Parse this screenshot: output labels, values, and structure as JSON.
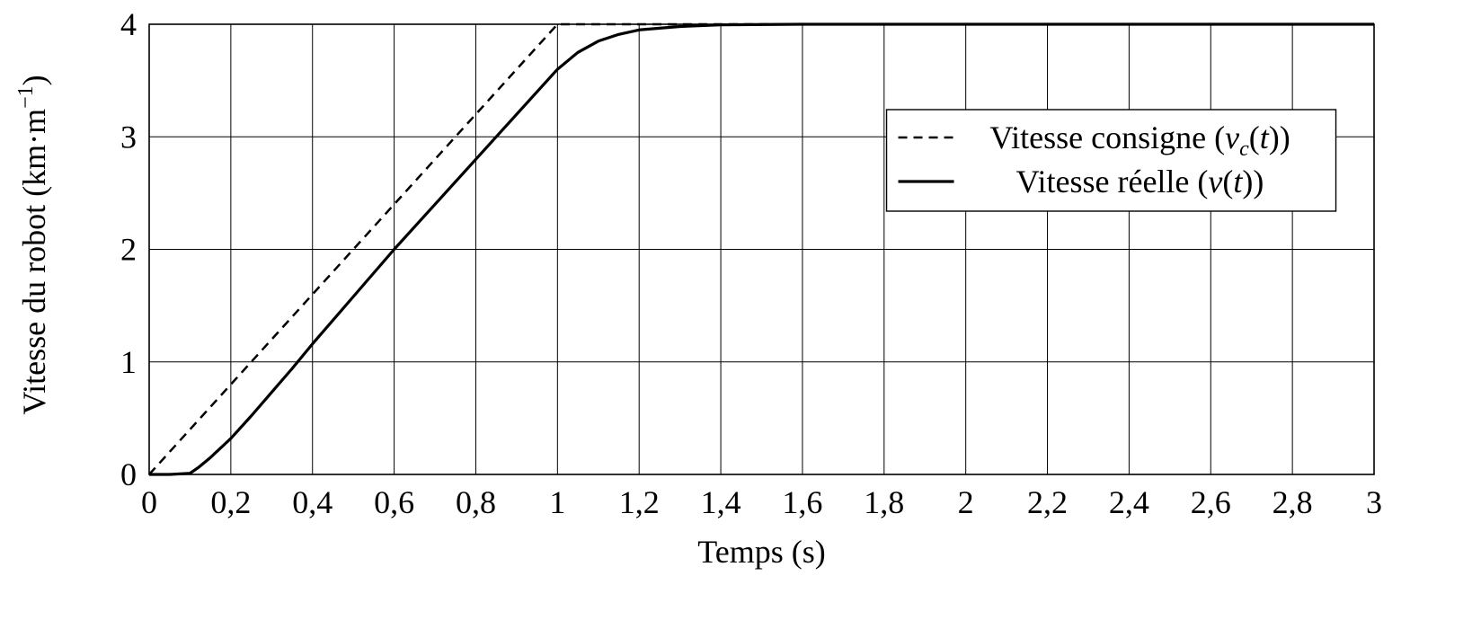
{
  "chart_data": {
    "type": "line",
    "title": "",
    "xlabel": "Temps (s)",
    "ylabel": "Vitesse du robot (km·m⁻¹)",
    "xlim": [
      0,
      3
    ],
    "ylim": [
      0,
      4
    ],
    "grid": true,
    "x_ticks": [
      0,
      0.2,
      0.4,
      0.6,
      0.8,
      1,
      1.2,
      1.4,
      1.6,
      1.8,
      2,
      2.2,
      2.4,
      2.6,
      2.8,
      3
    ],
    "x_tick_labels": [
      "0",
      "0,2",
      "0,4",
      "0,6",
      "0,8",
      "1",
      "1,2",
      "1,4",
      "1,6",
      "1,8",
      "2",
      "2,2",
      "2,4",
      "2,6",
      "2,8",
      "3"
    ],
    "y_ticks": [
      0,
      1,
      2,
      3,
      4
    ],
    "y_tick_labels": [
      "0",
      "1",
      "2",
      "3",
      "4"
    ],
    "legend_position": "upper-right",
    "series": [
      {
        "name": "Vitesse consigne (vc(t))",
        "style": "dashed",
        "color": "#000000",
        "x": [
          0,
          1,
          3
        ],
        "y": [
          0,
          4,
          4
        ]
      },
      {
        "name": "Vitesse réelle (v(t))",
        "style": "solid",
        "color": "#000000",
        "x": [
          0,
          0.05,
          0.1,
          0.12,
          0.15,
          0.2,
          0.25,
          0.3,
          0.35,
          0.4,
          0.5,
          0.6,
          0.7,
          0.8,
          0.9,
          1.0,
          1.05,
          1.1,
          1.15,
          1.2,
          1.3,
          1.4,
          1.6,
          2.0,
          3.0
        ],
        "y": [
          0,
          0,
          0.01,
          0.06,
          0.15,
          0.32,
          0.52,
          0.73,
          0.94,
          1.16,
          1.58,
          2.0,
          2.4,
          2.8,
          3.2,
          3.6,
          3.75,
          3.85,
          3.91,
          3.95,
          3.98,
          3.995,
          4.0,
          4.0,
          4.0
        ]
      }
    ]
  }
}
